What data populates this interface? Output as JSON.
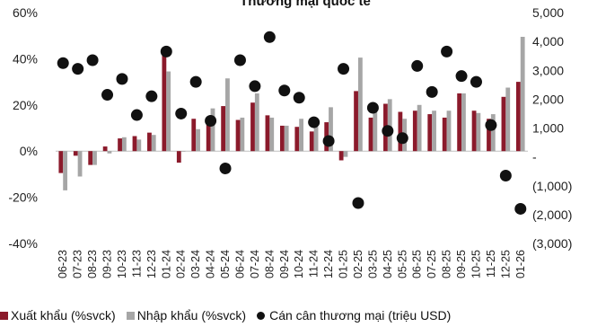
{
  "chart_data": {
    "type": "bar",
    "title": "Thương mại quốc tế",
    "categories": [
      "06-23",
      "07-23",
      "08-23",
      "09-23",
      "10-23",
      "11-23",
      "12-23",
      "01-24",
      "02-24",
      "03-24",
      "04-24",
      "05-24",
      "06-24",
      "07-24",
      "08-24",
      "09-24",
      "10-24",
      "11-24",
      "12-24",
      "01-25",
      "02-25",
      "03-25",
      "04-25",
      "05-25",
      "06-25",
      "07-25",
      "08-25",
      "09-25",
      "10-25",
      "11-25",
      "12-25",
      "01-26"
    ],
    "series": [
      {
        "name": "Xuất khẩu (%svck)",
        "axis": "left",
        "mark": "bar",
        "color": "#8b1a2b",
        "values": [
          -9.5,
          -2,
          -6,
          2,
          5.5,
          6.5,
          8,
          45,
          -5,
          14,
          13,
          19.5,
          13.5,
          21,
          15.5,
          11,
          10.5,
          8.5,
          12.5,
          -4,
          26,
          14.5,
          20.5,
          17,
          17.5,
          16,
          14.5,
          25,
          17.5,
          14,
          23.5,
          30
        ]
      },
      {
        "name": "Nhập khẩu (%svck)",
        "axis": "left",
        "mark": "bar",
        "color": "#a6a6a6",
        "values": [
          -17,
          -11,
          -6,
          -1,
          6,
          5,
          7,
          34.5,
          0,
          9.5,
          18.5,
          31.5,
          14.5,
          25,
          14.5,
          11,
          14,
          10.5,
          19,
          -2.5,
          40.5,
          17,
          22.5,
          14,
          20,
          17.5,
          17.5,
          25,
          16.5,
          16,
          27.5,
          49.5
        ]
      },
      {
        "name": "Cán cân thương mại (triệu USD)",
        "axis": "right",
        "mark": "scatter",
        "color": "#111111",
        "values": [
          3250,
          3050,
          3350,
          2150,
          2700,
          1450,
          2100,
          3650,
          1500,
          2600,
          1250,
          -400,
          3350,
          2450,
          4150,
          2300,
          2050,
          1200,
          550,
          3050,
          -1600,
          1700,
          900,
          650,
          3150,
          2250,
          3650,
          2800,
          2600,
          1100,
          -650,
          -1800
        ]
      }
    ],
    "y_left": {
      "min": -40,
      "max": 60,
      "ticks": [
        "-40%",
        "-20%",
        "0%",
        "20%",
        "40%",
        "60%"
      ]
    },
    "y_right": {
      "min": -3000,
      "max": 5000,
      "ticks": [
        "(3,000)",
        "(2,000)",
        "(1,000)",
        "-",
        "1,000",
        "2,000",
        "3,000",
        "4,000",
        "5,000"
      ]
    },
    "grid": false,
    "legend_position": "bottom"
  }
}
